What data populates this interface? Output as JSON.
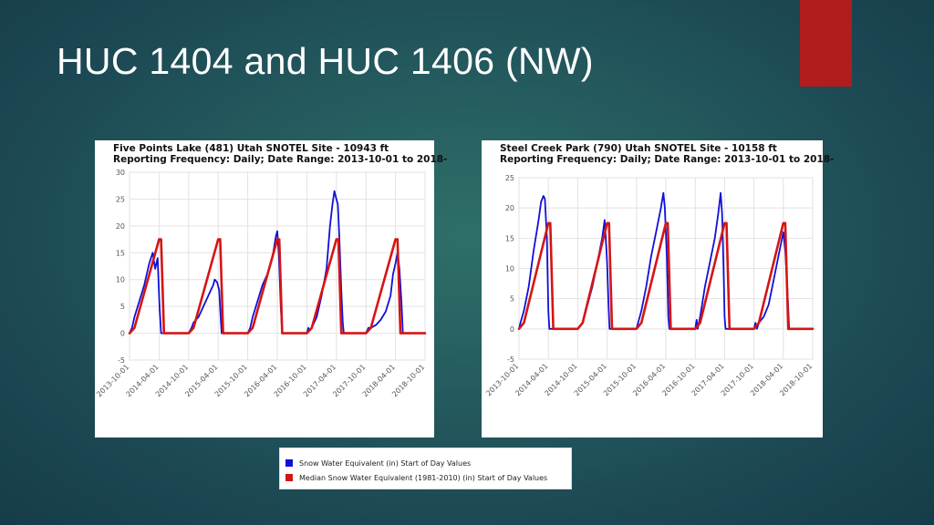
{
  "slide": {
    "title": "HUC 1404 and HUC 1406 (NW)",
    "accent_color": "#b11c1c"
  },
  "colors": {
    "observed": "#1010d8",
    "median": "#d51515"
  },
  "legend": {
    "observed_label": "Snow Water Equivalent (in) Start of Day Values",
    "median_label": "Median Snow Water Equivalent (1981-2010) (in) Start of Day Values"
  },
  "chart_data": [
    {
      "type": "line",
      "title_line1": "Five Points Lake (481) Utah SNOTEL Site - 10943 ft",
      "title_line2": "Reporting Frequency: Daily; Date Range: 2013-10-01 to 2018-",
      "ylim": [
        -5,
        30
      ],
      "yticks": [
        -5,
        0,
        5,
        10,
        15,
        20,
        25,
        30
      ],
      "xticks": [
        "2013-10-01",
        "2014-04-01",
        "2014-10-01",
        "2015-04-01",
        "2015-10-01",
        "2016-04-01",
        "2016-10-01",
        "2017-04-01",
        "2017-10-01",
        "2018-04-01",
        "2018-10-01"
      ],
      "xlim_months": [
        0,
        60
      ],
      "median_peak": 17.5,
      "series": [
        {
          "name": "Snow Water Equivalent (in) Start of Day Values",
          "key": "observed",
          "points": [
            [
              0,
              0
            ],
            [
              0.5,
              1
            ],
            [
              1,
              3
            ],
            [
              2,
              6
            ],
            [
              3,
              9
            ],
            [
              4,
              13
            ],
            [
              4.7,
              15
            ],
            [
              5.2,
              12
            ],
            [
              5.7,
              14
            ],
            [
              6.1,
              5
            ],
            [
              6.4,
              0
            ],
            [
              12,
              0
            ],
            [
              12.6,
              1
            ],
            [
              13,
              2
            ],
            [
              14,
              3
            ],
            [
              15,
              5
            ],
            [
              16,
              7
            ],
            [
              17,
              9
            ],
            [
              17.3,
              10
            ],
            [
              17.8,
              9.5
            ],
            [
              18.2,
              8
            ],
            [
              18.5,
              3
            ],
            [
              18.7,
              0
            ],
            [
              24,
              0
            ],
            [
              24.5,
              1
            ],
            [
              25,
              3
            ],
            [
              26,
              6
            ],
            [
              27,
              9
            ],
            [
              28,
              11
            ],
            [
              29,
              14
            ],
            [
              29.7,
              18
            ],
            [
              30,
              19
            ],
            [
              30.3,
              15
            ],
            [
              30.7,
              5
            ],
            [
              31,
              0
            ],
            [
              36,
              0
            ],
            [
              36.3,
              1
            ],
            [
              36.6,
              0.5
            ],
            [
              37,
              1
            ],
            [
              38,
              3
            ],
            [
              39,
              7
            ],
            [
              40,
              12
            ],
            [
              40.7,
              20
            ],
            [
              41.2,
              24
            ],
            [
              41.6,
              26.5
            ],
            [
              42,
              25
            ],
            [
              42.3,
              24
            ],
            [
              42.6,
              18
            ],
            [
              43,
              8
            ],
            [
              43.3,
              2
            ],
            [
              43.5,
              0
            ],
            [
              48,
              0
            ],
            [
              48.5,
              1
            ],
            [
              49,
              1
            ],
            [
              50,
              1.5
            ],
            [
              51,
              2.5
            ],
            [
              52,
              4
            ],
            [
              53,
              7
            ],
            [
              53.5,
              11
            ],
            [
              54,
              13
            ],
            [
              54.4,
              15
            ],
            [
              54.8,
              12
            ],
            [
              55.2,
              6
            ],
            [
              55.5,
              0
            ],
            [
              60,
              0
            ]
          ]
        },
        {
          "name": "Median Snow Water Equivalent (1981-2010) (in) Start of Day Values",
          "key": "median",
          "points": [
            [
              0,
              0
            ],
            [
              1,
              1
            ],
            [
              6,
              17.5
            ],
            [
              6.4,
              17.5
            ],
            [
              7,
              0
            ],
            [
              12,
              0
            ],
            [
              13,
              1
            ],
            [
              18,
              17.5
            ],
            [
              18.4,
              17.5
            ],
            [
              19,
              0
            ],
            [
              24,
              0
            ],
            [
              25,
              1
            ],
            [
              30,
              17.5
            ],
            [
              30.4,
              17.5
            ],
            [
              31,
              0
            ],
            [
              36,
              0
            ],
            [
              37,
              1
            ],
            [
              42,
              17.5
            ],
            [
              42.4,
              17.5
            ],
            [
              43,
              0
            ],
            [
              48,
              0
            ],
            [
              49,
              1
            ],
            [
              54,
              17.5
            ],
            [
              54.4,
              17.5
            ],
            [
              55,
              0
            ],
            [
              60,
              0
            ]
          ]
        }
      ]
    },
    {
      "type": "line",
      "title_line1": "Steel Creek Park (790) Utah SNOTEL Site - 10158 ft",
      "title_line2": "Reporting Frequency: Daily; Date Range: 2013-10-01 to 2018-",
      "ylim": [
        -5,
        25
      ],
      "yticks": [
        -5,
        0,
        5,
        10,
        15,
        20,
        25
      ],
      "xticks": [
        "2013-10-01",
        "2014-04-01",
        "2014-10-01",
        "2015-04-01",
        "2015-10-01",
        "2016-04-01",
        "2016-10-01",
        "2017-04-01",
        "2017-10-01",
        "2018-04-01",
        "2018-10-01"
      ],
      "xlim_months": [
        0,
        60
      ],
      "median_peak": 17.5,
      "series": [
        {
          "name": "Snow Water Equivalent (in) Start of Day Values",
          "key": "observed",
          "points": [
            [
              0,
              0
            ],
            [
              0.3,
              1
            ],
            [
              1,
              3
            ],
            [
              2,
              7
            ],
            [
              3,
              13
            ],
            [
              4,
              18
            ],
            [
              4.5,
              21
            ],
            [
              5,
              22
            ],
            [
              5.3,
              21.5
            ],
            [
              5.7,
              15
            ],
            [
              6,
              3
            ],
            [
              6.2,
              0
            ],
            [
              12,
              0
            ],
            [
              13,
              1
            ],
            [
              14,
              4
            ],
            [
              15,
              7
            ],
            [
              16,
              11
            ],
            [
              17,
              15
            ],
            [
              17.5,
              18
            ],
            [
              17.8,
              14
            ],
            [
              18,
              11
            ],
            [
              18.3,
              4
            ],
            [
              18.5,
              0
            ],
            [
              24,
              0
            ],
            [
              25,
              3
            ],
            [
              26,
              7
            ],
            [
              27,
              12
            ],
            [
              28,
              16
            ],
            [
              29,
              20
            ],
            [
              29.5,
              22.5
            ],
            [
              29.8,
              20
            ],
            [
              30.2,
              12
            ],
            [
              30.5,
              2
            ],
            [
              30.7,
              0
            ],
            [
              36,
              0
            ],
            [
              36.3,
              1.5
            ],
            [
              36.5,
              0
            ],
            [
              37,
              2
            ],
            [
              38,
              7
            ],
            [
              39,
              11
            ],
            [
              40,
              15
            ],
            [
              40.7,
              19
            ],
            [
              41.2,
              22.5
            ],
            [
              41.5,
              19
            ],
            [
              41.8,
              10
            ],
            [
              42,
              2
            ],
            [
              42.2,
              0
            ],
            [
              48,
              0
            ],
            [
              48.3,
              1
            ],
            [
              48.6,
              0
            ],
            [
              49,
              1
            ],
            [
              50,
              2
            ],
            [
              51,
              4
            ],
            [
              52,
              8
            ],
            [
              53,
              12
            ],
            [
              53.5,
              14
            ],
            [
              54,
              16
            ],
            [
              54.4,
              13
            ],
            [
              54.8,
              7
            ],
            [
              55.2,
              0
            ],
            [
              60,
              0
            ]
          ]
        },
        {
          "name": "Median Snow Water Equivalent (1981-2010) (in) Start of Day Values",
          "key": "median",
          "points": [
            [
              0,
              0
            ],
            [
              1,
              1
            ],
            [
              6,
              17.5
            ],
            [
              6.4,
              17.5
            ],
            [
              7,
              0
            ],
            [
              12,
              0
            ],
            [
              13,
              1
            ],
            [
              18,
              17.5
            ],
            [
              18.4,
              17.5
            ],
            [
              19,
              0
            ],
            [
              24,
              0
            ],
            [
              25,
              1
            ],
            [
              30,
              17.5
            ],
            [
              30.4,
              17.5
            ],
            [
              31,
              0
            ],
            [
              36,
              0
            ],
            [
              37,
              1
            ],
            [
              42,
              17.5
            ],
            [
              42.4,
              17.5
            ],
            [
              43,
              0
            ],
            [
              48,
              0
            ],
            [
              49,
              1
            ],
            [
              54,
              17.5
            ],
            [
              54.4,
              17.5
            ],
            [
              55,
              0
            ],
            [
              60,
              0
            ]
          ]
        }
      ]
    }
  ]
}
